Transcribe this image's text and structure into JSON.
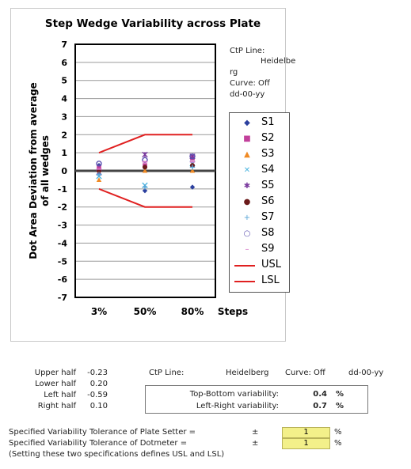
{
  "chart_data": {
    "type": "scatter",
    "title": "Step Wedge Variability across Plate",
    "ylabel": "Dot Area Deviation from average of all wedges",
    "xlabel": "Steps",
    "categories": [
      "3%",
      "50%",
      "80%"
    ],
    "ylim": [
      -7,
      7
    ],
    "yticks": [
      7,
      6,
      5,
      4,
      3,
      2,
      1,
      0,
      -1,
      -2,
      -3,
      -4,
      -5,
      -6,
      -7
    ],
    "grid": true,
    "legend_position": "right",
    "series": [
      {
        "name": "S1",
        "marker": "diamond",
        "color": "#2b3f9e",
        "values": [
          0.3,
          -1.1,
          -0.9
        ]
      },
      {
        "name": "S2",
        "marker": "square",
        "color": "#c2409b",
        "values": [
          0.2,
          0.3,
          0.7
        ]
      },
      {
        "name": "S3",
        "marker": "triangle",
        "color": "#f08a24",
        "values": [
          -0.5,
          0.0,
          0.0
        ]
      },
      {
        "name": "S4",
        "marker": "x",
        "color": "#4fb6e0",
        "values": [
          -0.3,
          -0.8,
          0.4
        ]
      },
      {
        "name": "S5",
        "marker": "star",
        "color": "#7a3a9e",
        "values": [
          -0.1,
          0.9,
          0.8
        ]
      },
      {
        "name": "S6",
        "marker": "circle",
        "color": "#6b1a1a",
        "values": [
          0.0,
          0.2,
          0.3
        ]
      },
      {
        "name": "S7",
        "marker": "plus",
        "color": "#5aa6d6",
        "values": [
          -0.2,
          -0.9,
          0.2
        ]
      },
      {
        "name": "S8",
        "marker": "circle-open",
        "color": "#5b4fb0",
        "values": [
          0.4,
          0.6,
          0.8
        ]
      },
      {
        "name": "S9",
        "marker": "dash",
        "color": "#d36fc3",
        "values": [
          0.1,
          0.5,
          0.5
        ]
      }
    ],
    "limits": [
      {
        "name": "USL",
        "color": "#e02020",
        "values": [
          1,
          2,
          2
        ]
      },
      {
        "name": "LSL",
        "color": "#e02020",
        "values": [
          -1,
          -2,
          -2
        ]
      }
    ]
  },
  "chart_meta": {
    "ctp_label": "CtP Line:",
    "ctp_value_part1": "Heidelbe",
    "ctp_value_part2": "rg",
    "curve": "Curve: Off",
    "date": "dd-00-yy"
  },
  "summary": {
    "upper_half_label": "Upper half",
    "upper_half_value": "-0.23",
    "lower_half_label": "Lower half",
    "lower_half_value": "0.20",
    "left_half_label": "Left half",
    "left_half_value": "-0.59",
    "right_half_label": "Right half",
    "right_half_value": "0.10",
    "ctp_label": "CtP Line:",
    "ctp_value": "Heidelberg",
    "curve": "Curve: Off",
    "date": "dd-00-yy",
    "tb_label": "Top-Bottom variability:",
    "tb_value": "0.4",
    "lr_label": "Left-Right variability:",
    "lr_value": "0.7",
    "pct": "%"
  },
  "spec": {
    "line1_label": "Specified Variability Tolerance of Plate Setter  =",
    "line1_pm": "±",
    "line1_value": "1",
    "line2_label": "Specified Variability Tolerance of Dotmeter  =",
    "line2_pm": "±",
    "line2_value": "1",
    "note": "(Setting these two specifications defines USL and LSL)",
    "pct": "%"
  }
}
